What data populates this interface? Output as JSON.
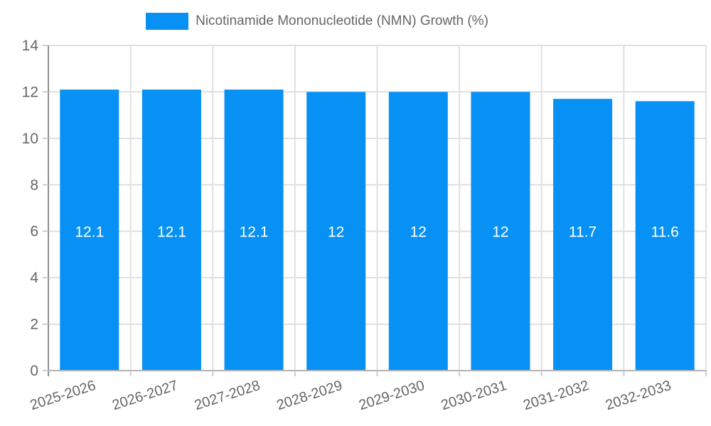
{
  "legend": {
    "label": "Nicotinamide Mononucleotide (NMN) Growth (%)"
  },
  "chart_data": {
    "type": "bar",
    "title": "Nicotinamide Mononucleotide (NMN) Growth (%)",
    "categories": [
      "2025-2026",
      "2026-2027",
      "2027-2028",
      "2028-2029",
      "2029-2030",
      "2030-2031",
      "2031-2032",
      "2032-2033"
    ],
    "values": [
      12.1,
      12.1,
      12.1,
      12,
      12,
      12,
      11.7,
      11.6
    ],
    "bar_labels": [
      "12.1",
      "12.1",
      "12.1",
      "12",
      "12",
      "12",
      "11.7",
      "11.6"
    ],
    "xlabel": "",
    "ylabel": "",
    "ylim": [
      0,
      14
    ],
    "yticks": [
      0,
      2,
      4,
      6,
      8,
      10,
      12,
      14
    ],
    "grid": true,
    "legend_position": "top",
    "value_label_y": 6,
    "colors": {
      "bar": "#0791F5",
      "grid": "#E0E0E0",
      "axis_left": "#8E8E8E",
      "axis_bottom": "#B3B3B3",
      "tick": "#CCCCCC",
      "text": "#666666",
      "value_label": "#FFFFFF"
    }
  }
}
